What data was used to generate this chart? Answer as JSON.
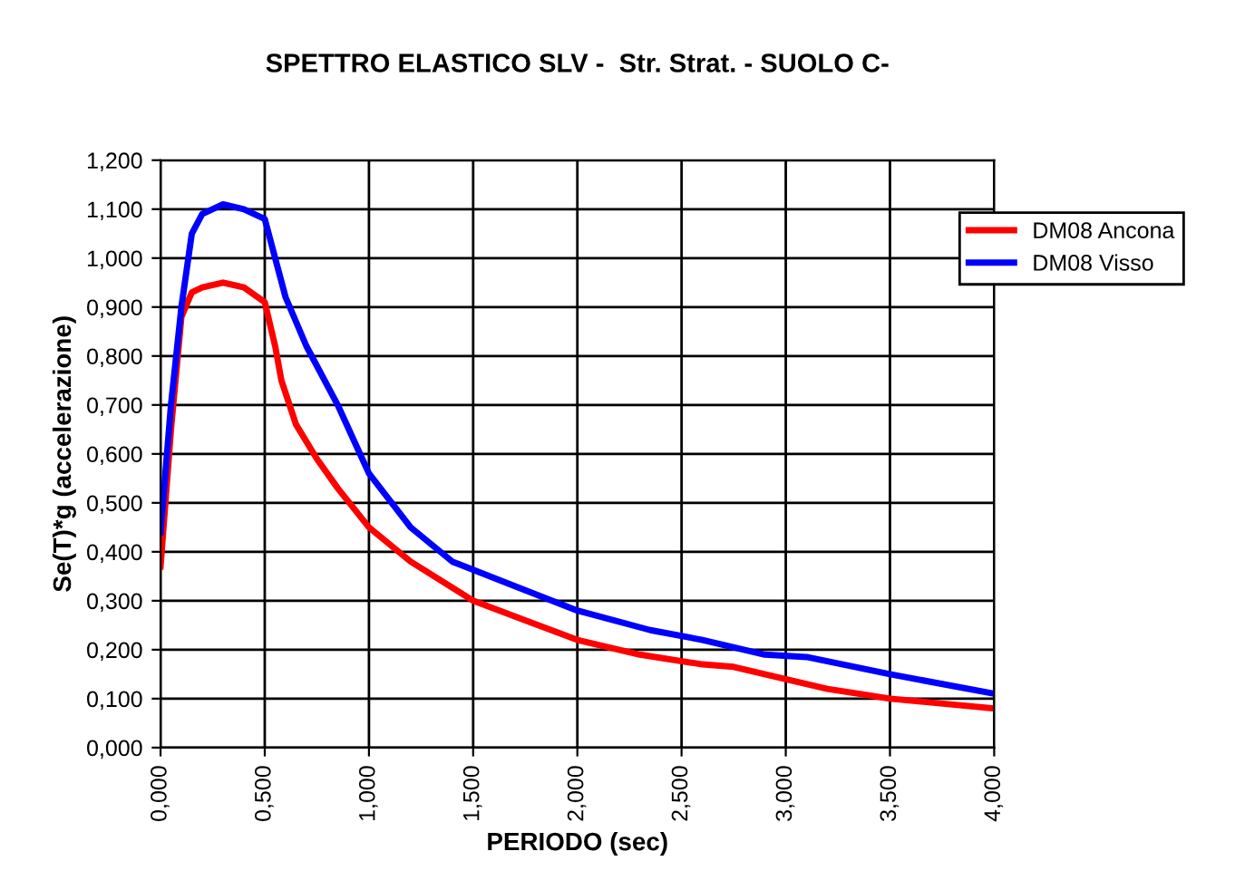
{
  "chart_data": {
    "type": "line",
    "title": "SPETTRO ELASTICO SLV -  Str. Strat. - SUOLO C-",
    "xlabel": "PERIODO (sec)",
    "ylabel": "Se(T)*g (accelerazione)",
    "xlim": [
      0,
      4
    ],
    "ylim": [
      0,
      1.2
    ],
    "xticks": [
      {
        "value": 0,
        "label": "0,000"
      },
      {
        "value": 0.5,
        "label": "0,500"
      },
      {
        "value": 1,
        "label": "1,000"
      },
      {
        "value": 1.5,
        "label": "1,500"
      },
      {
        "value": 2,
        "label": "2,000"
      },
      {
        "value": 2.5,
        "label": "2,500"
      },
      {
        "value": 3,
        "label": "3,000"
      },
      {
        "value": 3.5,
        "label": "3,500"
      },
      {
        "value": 4,
        "label": "4,000"
      }
    ],
    "yticks": [
      {
        "value": 0,
        "label": "0,000"
      },
      {
        "value": 0.1,
        "label": "0,100"
      },
      {
        "value": 0.2,
        "label": "0,200"
      },
      {
        "value": 0.3,
        "label": "0,300"
      },
      {
        "value": 0.4,
        "label": "0,400"
      },
      {
        "value": 0.5,
        "label": "0,500"
      },
      {
        "value": 0.6,
        "label": "0,600"
      },
      {
        "value": 0.7,
        "label": "0,700"
      },
      {
        "value": 0.8,
        "label": "0,800"
      },
      {
        "value": 0.9,
        "label": "0,900"
      },
      {
        "value": 1.0,
        "label": "1,000"
      },
      {
        "value": 1.1,
        "label": "1,100"
      },
      {
        "value": 1.2,
        "label": "1,200"
      }
    ],
    "grid": true,
    "legend": "top right",
    "marker": "none",
    "line_style": "solid",
    "series": [
      {
        "name": "DM08 Ancona",
        "color": "#ff0000",
        "x": [
          0,
          0.05,
          0.1,
          0.15,
          0.2,
          0.3,
          0.4,
          0.5,
          0.55,
          0.58,
          0.65,
          0.75,
          0.85,
          1.0,
          1.2,
          1.5,
          1.75,
          2.0,
          2.3,
          2.6,
          2.75,
          3.0,
          3.2,
          3.5,
          4.0
        ],
        "values": [
          0.37,
          0.65,
          0.88,
          0.93,
          0.94,
          0.95,
          0.94,
          0.91,
          0.82,
          0.75,
          0.66,
          0.59,
          0.53,
          0.45,
          0.38,
          0.3,
          0.26,
          0.22,
          0.19,
          0.17,
          0.165,
          0.14,
          0.12,
          0.1,
          0.08
        ]
      },
      {
        "name": "DM08 Visso",
        "color": "#0000ff",
        "x": [
          0,
          0.05,
          0.1,
          0.15,
          0.2,
          0.3,
          0.4,
          0.5,
          0.55,
          0.6,
          0.7,
          0.85,
          1.0,
          1.2,
          1.4,
          1.7,
          2.0,
          2.35,
          2.6,
          2.9,
          3.1,
          3.5,
          4.0
        ],
        "values": [
          0.44,
          0.7,
          0.9,
          1.05,
          1.09,
          1.11,
          1.1,
          1.08,
          1.0,
          0.92,
          0.82,
          0.7,
          0.56,
          0.45,
          0.38,
          0.33,
          0.28,
          0.24,
          0.22,
          0.19,
          0.185,
          0.15,
          0.11
        ]
      }
    ]
  }
}
